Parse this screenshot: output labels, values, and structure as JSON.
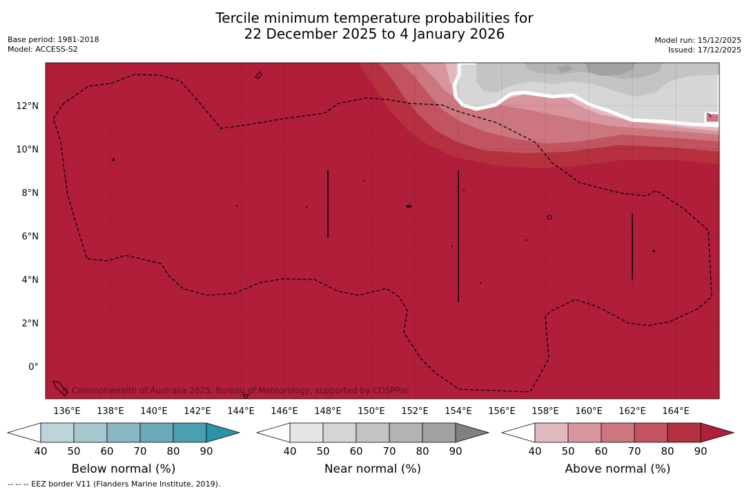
{
  "title": {
    "line1": "Tercile minimum temperature probabilities for",
    "line2": "22 December 2025 to 4 January 2026"
  },
  "meta_left": {
    "base_period": "Base period: 1981-2018",
    "model": "Model: ACCESS-S2"
  },
  "meta_right": {
    "model_run": "Model run: 15/12/2025",
    "issued": "Issued: 17/12/2025"
  },
  "map": {
    "lat_labels": [
      "12°N",
      "10°N",
      "8°N",
      "6°N",
      "4°N",
      "2°N",
      "0°"
    ],
    "lon_labels": [
      "136°E",
      "138°E",
      "140°E",
      "142°E",
      "144°E",
      "146°E",
      "148°E",
      "150°E",
      "152°E",
      "154°E",
      "156°E",
      "158°E",
      "160°E",
      "162°E",
      "164°E"
    ],
    "copyright": "© Commonwealth of Australia 2025, Bureau of Meteorology, supported by COSPPac"
  },
  "colorbars": [
    {
      "title": "Below normal (%)",
      "ticks": [
        "40",
        "50",
        "60",
        "70",
        "80",
        "90"
      ],
      "colors": [
        "#ffffff",
        "#bcd4da",
        "#a7c8ce",
        "#8ab8c2",
        "#6aaab8",
        "#4aa0b0",
        "#2b93a6"
      ]
    },
    {
      "title": "Near normal (%)",
      "ticks": [
        "40",
        "50",
        "60",
        "70",
        "80",
        "90"
      ],
      "colors": [
        "#ffffff",
        "#e6e6e6",
        "#d5d5d5",
        "#c4c4c4",
        "#b3b3b3",
        "#a2a2a2",
        "#808080"
      ]
    },
    {
      "title": "Above normal (%)",
      "ticks": [
        "40",
        "50",
        "60",
        "70",
        "80",
        "90"
      ],
      "colors": [
        "#ffffff",
        "#e2b9bf",
        "#d8959d",
        "#cc7780",
        "#c15460",
        "#b6313f",
        "#b11e3a"
      ]
    }
  ],
  "footnote": "--  --  -- EEZ border V11 (Flanders Marine Institute, 2019)."
}
